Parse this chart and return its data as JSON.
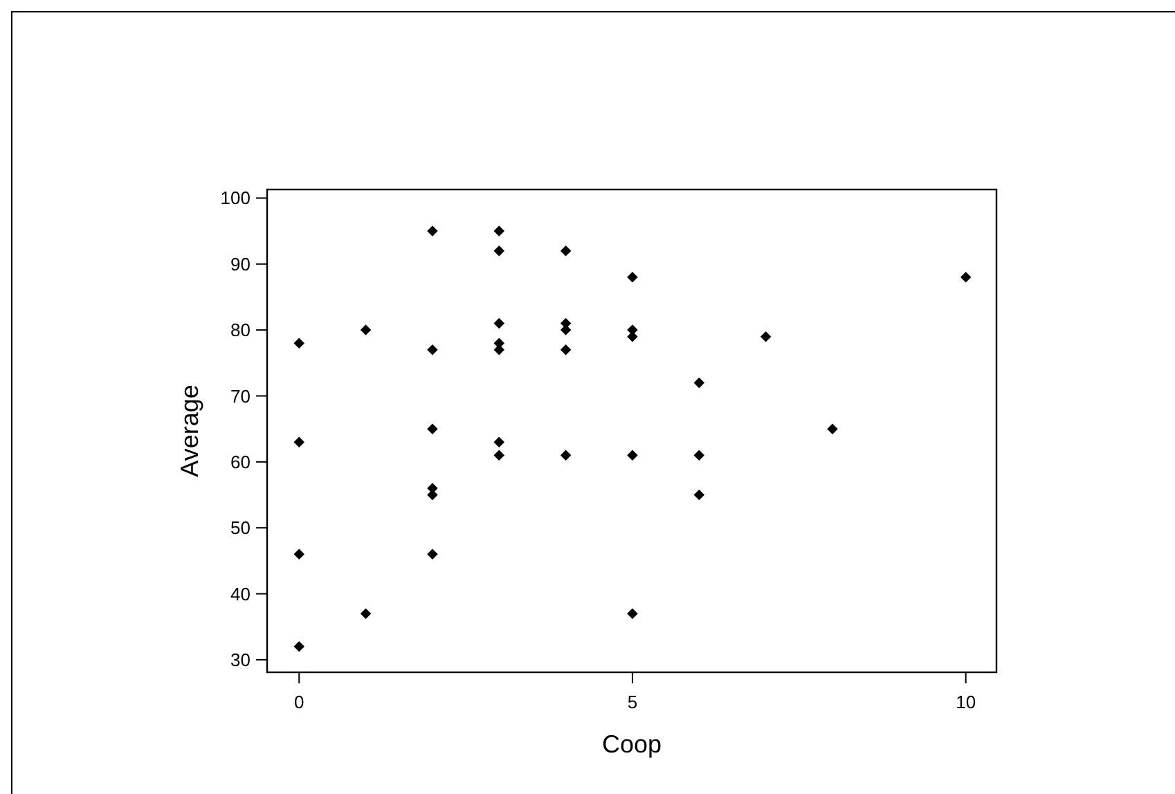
{
  "chart_data": {
    "type": "scatter",
    "xlabel": "Coop",
    "ylabel": "Average",
    "x": [
      0,
      0,
      0,
      0,
      1,
      1,
      2,
      2,
      2,
      2,
      2,
      2,
      3,
      3,
      3,
      3,
      3,
      3,
      3,
      4,
      4,
      4,
      4,
      4,
      5,
      5,
      5,
      5,
      5,
      6,
      6,
      6,
      7,
      8,
      10
    ],
    "series": [
      {
        "color": "#000000",
        "values": [
          78,
          63,
          46,
          32,
          80,
          37,
          95,
          77,
          65,
          56,
          55,
          46,
          95,
          92,
          81,
          78,
          77,
          63,
          61,
          92,
          81,
          80,
          77,
          61,
          88,
          80,
          79,
          61,
          37,
          72,
          61,
          55,
          79,
          65,
          88
        ]
      }
    ],
    "xlim": [
      -0.48,
      10.46
    ],
    "xticks": [
      0,
      5,
      10
    ],
    "ylim": [
      28.1,
      101.3
    ],
    "yticks": [
      30,
      40,
      50,
      60,
      70,
      80,
      90,
      100
    ],
    "marker": "diamond"
  }
}
